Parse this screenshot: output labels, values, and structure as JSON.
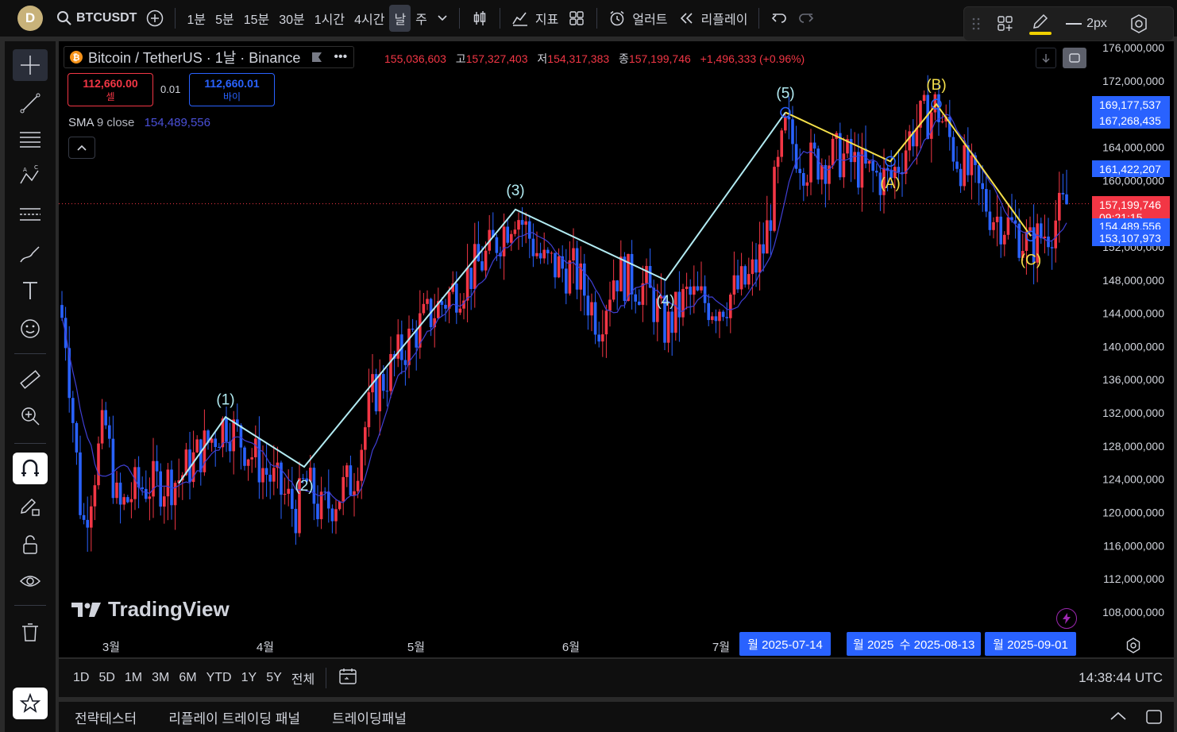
{
  "topbar": {
    "avatar": "D",
    "symbol": "BTCUSDT",
    "intervals": [
      "1분",
      "5분",
      "15분",
      "30분",
      "1시간",
      "4시간",
      "날",
      "주"
    ],
    "active_interval": "날",
    "indicators_label": "지표",
    "alert_label": "얼러트",
    "replay_label": "리플레이"
  },
  "drawbar": {
    "stroke_label": "2px",
    "highlight_color": "#f0d000"
  },
  "legend": {
    "title": "Bitcoin / TetherUS · 1날 · Binance",
    "open_label": "",
    "open": "155,036,603",
    "high_label": "고",
    "high": "157,327,403",
    "low_label": "저",
    "low": "154,317,383",
    "close_label": "종",
    "close": "157,199,746",
    "change": "+1,496,333 (+0.96%)",
    "sell_price": "112,660.00",
    "sell_label": "셀",
    "spread": "0.01",
    "buy_price": "112,660.01",
    "buy_label": "바이",
    "sma_label": "SMA",
    "sma_params": "9 close",
    "sma_value": "154,489,556",
    "collapse_icon": "chevron-up-icon"
  },
  "price_axis": {
    "ticks": [
      "176,000,000",
      "172,000,000",
      "168,000,000",
      "164,000,000",
      "160,000,000",
      "156,000,000",
      "152,000,000",
      "148,000,000",
      "144,000,000",
      "140,000,000",
      "136,000,000",
      "132,000,000",
      "128,000,000",
      "124,000,000",
      "120,000,000",
      "116,000,000",
      "112,000,000",
      "108,000,000"
    ],
    "badges": [
      {
        "text": "169,177,537",
        "color": "#2962ff"
      },
      {
        "text": "167,268,435",
        "color": "#2962ff"
      },
      {
        "text": "161,422,207",
        "color": "#2962ff"
      },
      {
        "text": "157,199,746",
        "sub": "09:21:15",
        "color": "#f23645"
      },
      {
        "text": "154,489,556",
        "color": "#2962ff"
      },
      {
        "text": "153,107,973",
        "color": "#2962ff"
      }
    ]
  },
  "time_axis": {
    "labels": [
      "3월",
      "4월",
      "5월",
      "6월",
      "7월"
    ],
    "badges": [
      "월 2025-07-14",
      "월 2025",
      "수 2025-08-13",
      "월 2025-09-01"
    ]
  },
  "waves": {
    "impulse": [
      "(1)",
      "(2)",
      "(3)",
      "(4)",
      "(5)"
    ],
    "corrective": [
      "(A)",
      "(B)",
      "(C)"
    ],
    "impulse_color": "#b2ebf2",
    "corrective_color": "#f5e04a"
  },
  "watermark": "TradingView",
  "range_buttons": [
    "1D",
    "5D",
    "1M",
    "3M",
    "6M",
    "YTD",
    "1Y",
    "5Y",
    "전체"
  ],
  "clock": "14:38:44 UTC",
  "bottom_tabs": [
    "전략테스터",
    "리플레이 트레이딩 패널",
    "트레이딩패널"
  ],
  "colors": {
    "up": "#f23645",
    "down": "#2962ff",
    "sma": "#3f3fd4",
    "last_price_line": "#f23645"
  },
  "chart_data": {
    "type": "candlestick",
    "x_range": [
      "2025-02",
      "2025-09"
    ],
    "ylim": [
      106000000,
      177000000
    ],
    "last_close": 157199746,
    "sma9_last": 154489556
  }
}
